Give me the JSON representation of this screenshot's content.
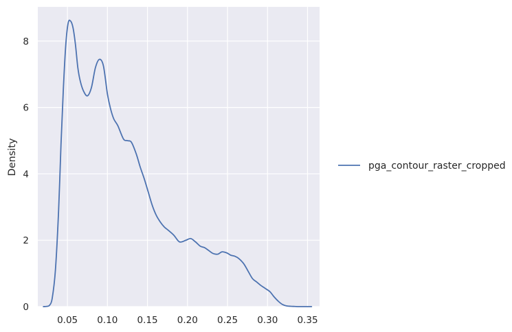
{
  "chart_data": {
    "type": "line",
    "title": "",
    "xlabel": "",
    "ylabel": "Density",
    "xlim": [
      0.013,
      0.365
    ],
    "ylim": [
      0,
      9.03
    ],
    "xticks": [
      0.05,
      0.1,
      0.15,
      0.2,
      0.25,
      0.3,
      0.35
    ],
    "xtick_labels": [
      "0.05",
      "0.10",
      "0.15",
      "0.20",
      "0.25",
      "0.30",
      "0.35"
    ],
    "yticks": [
      0,
      2,
      4,
      6,
      8
    ],
    "ytick_labels": [
      "0",
      "2",
      "4",
      "6",
      "8"
    ],
    "grid": true,
    "legend_position": "right",
    "colors": {
      "background": "#eaeaf2",
      "grid": "#ffffff",
      "line": "#4c72b0"
    },
    "series": [
      {
        "name": "pga_contour_raster_cropped",
        "x": [
          0.02,
          0.025,
          0.028,
          0.031,
          0.035,
          0.039,
          0.042,
          0.045,
          0.048,
          0.051,
          0.054,
          0.057,
          0.06,
          0.063,
          0.066,
          0.07,
          0.075,
          0.08,
          0.085,
          0.09,
          0.095,
          0.1,
          0.104,
          0.108,
          0.113,
          0.12,
          0.125,
          0.13,
          0.136,
          0.141,
          0.146,
          0.151,
          0.156,
          0.161,
          0.166,
          0.171,
          0.176,
          0.183,
          0.19,
          0.198,
          0.204,
          0.21,
          0.216,
          0.221,
          0.226,
          0.232,
          0.238,
          0.243,
          0.249,
          0.254,
          0.259,
          0.264,
          0.27,
          0.275,
          0.281,
          0.286,
          0.291,
          0.297,
          0.303,
          0.308,
          0.314,
          0.319,
          0.324,
          0.329,
          0.334,
          0.339,
          0.345,
          0.35,
          0.355
        ],
        "y": [
          0.0,
          0.01,
          0.05,
          0.25,
          1.1,
          2.9,
          4.9,
          6.6,
          7.9,
          8.55,
          8.6,
          8.4,
          7.9,
          7.2,
          6.8,
          6.5,
          6.35,
          6.6,
          7.2,
          7.45,
          7.25,
          6.4,
          5.95,
          5.65,
          5.45,
          5.05,
          5.0,
          4.95,
          4.6,
          4.2,
          3.85,
          3.45,
          3.05,
          2.75,
          2.55,
          2.4,
          2.3,
          2.15,
          1.95,
          2.0,
          2.05,
          1.95,
          1.82,
          1.78,
          1.7,
          1.6,
          1.58,
          1.65,
          1.62,
          1.55,
          1.52,
          1.45,
          1.3,
          1.1,
          0.85,
          0.75,
          0.65,
          0.55,
          0.45,
          0.3,
          0.15,
          0.06,
          0.02,
          0.01,
          0.005,
          0.0,
          0.0,
          0.0,
          0.0
        ]
      }
    ]
  }
}
